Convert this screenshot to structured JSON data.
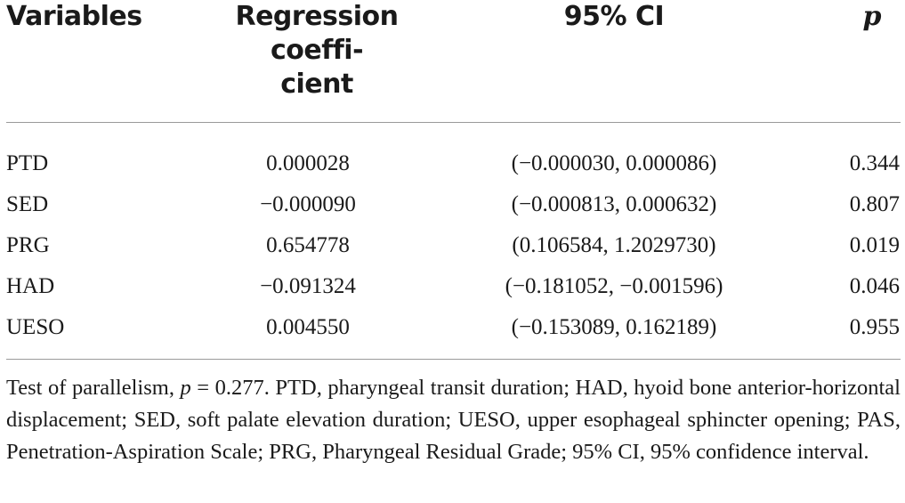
{
  "table": {
    "headers": {
      "variables": "Variables",
      "coef_line1": "Regression",
      "coef_line2": "coeffi-",
      "coef_line3": "cient",
      "ci": "95% CI",
      "p": "p"
    },
    "rows": [
      {
        "variable": "PTD",
        "coefficient": "0.000028",
        "ci": "(−0.000030, 0.000086)",
        "p": "0.344"
      },
      {
        "variable": "SED",
        "coefficient": "−0.000090",
        "ci": "(−0.000813, 0.000632)",
        "p": "0.807"
      },
      {
        "variable": "PRG",
        "coefficient": "0.654778",
        "ci": "(0.106584, 1.2029730)",
        "p": "0.019"
      },
      {
        "variable": "HAD",
        "coefficient": "−0.091324",
        "ci": "(−0.181052, −0.001596)",
        "p": "0.046"
      },
      {
        "variable": "UESO",
        "coefficient": "0.004550",
        "ci": "(−0.153089, 0.162189)",
        "p": "0.955"
      }
    ]
  },
  "footnote": {
    "lead": "Test of parallelism, ",
    "p_symbol": "p",
    "rest": " = 0.277. PTD, pharyngeal transit duration; HAD, hyoid bone anterior-horizontal displacement; SED, soft palate elevation duration; UESO, upper esophageal sphincter opening; PAS, Penetration-Aspiration Scale; PRG, Pharyngeal Residual Grade; 95% CI, 95% confidence interval."
  }
}
